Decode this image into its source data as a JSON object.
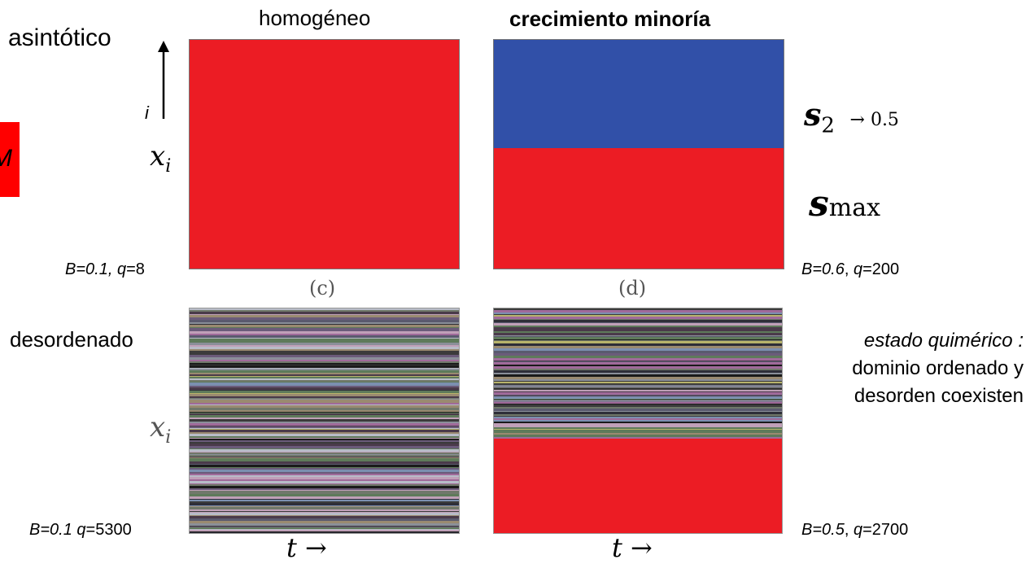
{
  "colors": {
    "red": "#ec1c24",
    "blue": "#3150a8"
  },
  "headings": {
    "asymptotic": "asintótico",
    "homogeneous": "homogéneo",
    "minority": "crecimiento minoría",
    "disordered": "desordenado"
  },
  "side_tag": "M",
  "axis": {
    "i_label": "i",
    "x_label_top": "x",
    "x_label_top_sub": "i",
    "x_label_bottom": "x",
    "x_label_bottom_sub": "i",
    "t_left": "t →",
    "t_right": "t →"
  },
  "subpanel_labels": {
    "c": "(c)",
    "d": "(d)"
  },
  "annotations": {
    "s2": "s",
    "s2_sub": "2",
    "s2_arrow": "→ 0.5",
    "smax": "s",
    "smax_sub": "max",
    "chimeric_title": "estado quimérico :",
    "chimeric_line1": "dominio ordenado y",
    "chimeric_line2": "desorden coexisten"
  },
  "params": {
    "c_B": "B=0.1,",
    "c_q": " q",
    "c_val": "=8",
    "d_B": "B=0.6",
    "d_sep": ", ",
    "d_q": "q",
    "d_val": "=200",
    "lb_B": "B=0.1",
    "lb_q": " q",
    "lb_val": "=5300",
    "rb_B": "B=0.5",
    "rb_sep": ", ",
    "rb_q": "q",
    "rb_val": "=2700"
  },
  "chart_data": [
    {
      "panel": "c",
      "type": "heatmap",
      "regions": [
        {
          "state": "homogeneous",
          "color": "#ec1c24",
          "fraction": 1.0
        }
      ]
    },
    {
      "panel": "d",
      "type": "heatmap",
      "regions": [
        {
          "state": "s2",
          "color": "#3150a8",
          "fraction": 0.47
        },
        {
          "state": "smax",
          "color": "#ec1c24",
          "fraction": 0.53
        }
      ]
    },
    {
      "panel": "bottom-left",
      "type": "heatmap",
      "regions": [
        {
          "state": "disordered",
          "fraction": 1.0
        }
      ]
    },
    {
      "panel": "bottom-right",
      "type": "heatmap",
      "regions": [
        {
          "state": "disordered",
          "fraction": 0.57
        },
        {
          "state": "smax",
          "color": "#ec1c24",
          "fraction": 0.43
        }
      ]
    }
  ]
}
